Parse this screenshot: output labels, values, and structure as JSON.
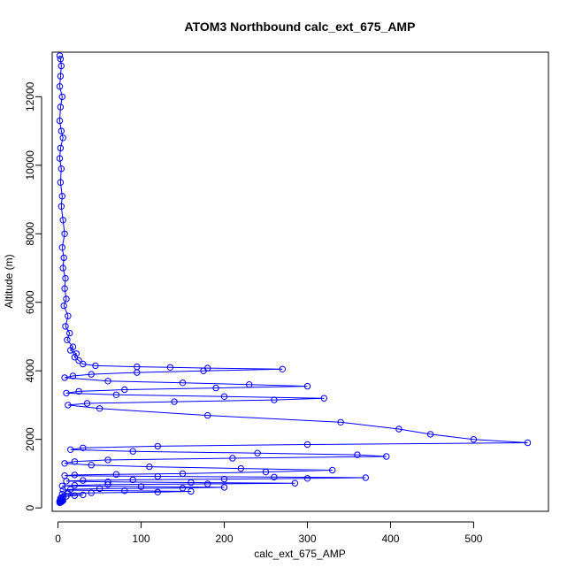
{
  "chart_data": {
    "type": "scatter",
    "title": "ATOM3 Northbound calc_ext_675_AMP",
    "xlabel": "calc_ext_675_AMP",
    "ylabel": "Altitude (m)",
    "xlim": [
      -7,
      590
    ],
    "ylim": [
      -100,
      13300
    ],
    "x_ticks": [
      "0",
      "100",
      "200",
      "300",
      "400",
      "500"
    ],
    "y_ticks": [
      "0",
      "2000",
      "4000",
      "6000",
      "8000",
      "10000",
      "12000"
    ],
    "grid": false,
    "legend": "none",
    "marker": "open-circle",
    "connected": true,
    "color": "#0000ff",
    "series": [
      {
        "x": [
          2,
          3,
          4,
          3,
          2,
          5,
          3,
          2,
          4,
          6,
          3,
          2,
          4,
          3,
          5,
          4,
          6,
          8,
          5,
          7,
          6,
          9,
          8,
          10,
          7,
          12,
          9,
          14,
          11,
          18,
          15,
          22,
          20,
          25,
          30,
          45,
          95,
          135,
          180,
          270,
          175,
          95,
          40,
          18,
          8,
          60,
          150,
          230,
          300,
          190,
          80,
          25,
          10,
          70,
          200,
          320,
          260,
          140,
          35,
          12,
          50,
          180,
          340,
          410,
          448,
          500,
          565,
          300,
          120,
          30,
          15,
          90,
          240,
          360,
          395,
          210,
          60,
          20,
          8,
          40,
          110,
          220,
          330,
          250,
          150,
          70,
          20,
          8,
          120,
          260,
          370,
          300,
          200,
          90,
          30,
          10,
          60,
          160,
          285,
          180,
          60,
          20,
          5,
          100,
          200,
          150,
          50,
          15,
          6,
          80,
          160,
          120,
          40,
          12,
          5,
          30,
          20,
          10,
          6,
          4,
          3,
          5,
          4,
          3,
          2,
          3,
          2,
          4,
          3,
          2,
          3,
          2,
          4,
          3,
          5,
          6,
          3
        ],
        "y": [
          13200,
          13100,
          12900,
          12600,
          12300,
          12000,
          11700,
          11300,
          11000,
          10800,
          10500,
          10200,
          9900,
          9500,
          9100,
          8800,
          8400,
          8000,
          7600,
          7300,
          7000,
          6700,
          6400,
          6100,
          5900,
          5600,
          5300,
          5100,
          4900,
          4700,
          4600,
          4500,
          4400,
          4300,
          4200,
          4150,
          4120,
          4100,
          4080,
          4050,
          4000,
          3950,
          3900,
          3850,
          3800,
          3700,
          3650,
          3600,
          3550,
          3500,
          3450,
          3400,
          3350,
          3300,
          3250,
          3200,
          3150,
          3100,
          3050,
          3000,
          2900,
          2700,
          2500,
          2300,
          2150,
          2000,
          1900,
          1850,
          1800,
          1750,
          1700,
          1650,
          1600,
          1550,
          1500,
          1450,
          1400,
          1350,
          1300,
          1250,
          1200,
          1150,
          1100,
          1050,
          1000,
          980,
          960,
          940,
          920,
          900,
          880,
          860,
          840,
          820,
          800,
          780,
          760,
          740,
          720,
          700,
          680,
          660,
          640,
          620,
          600,
          580,
          560,
          540,
          520,
          500,
          480,
          460,
          440,
          420,
          400,
          380,
          360,
          340,
          320,
          300,
          280,
          260,
          240,
          220,
          200,
          190,
          180,
          170,
          160,
          150,
          160,
          170,
          180,
          190,
          200,
          210,
          220
        ]
      }
    ]
  }
}
